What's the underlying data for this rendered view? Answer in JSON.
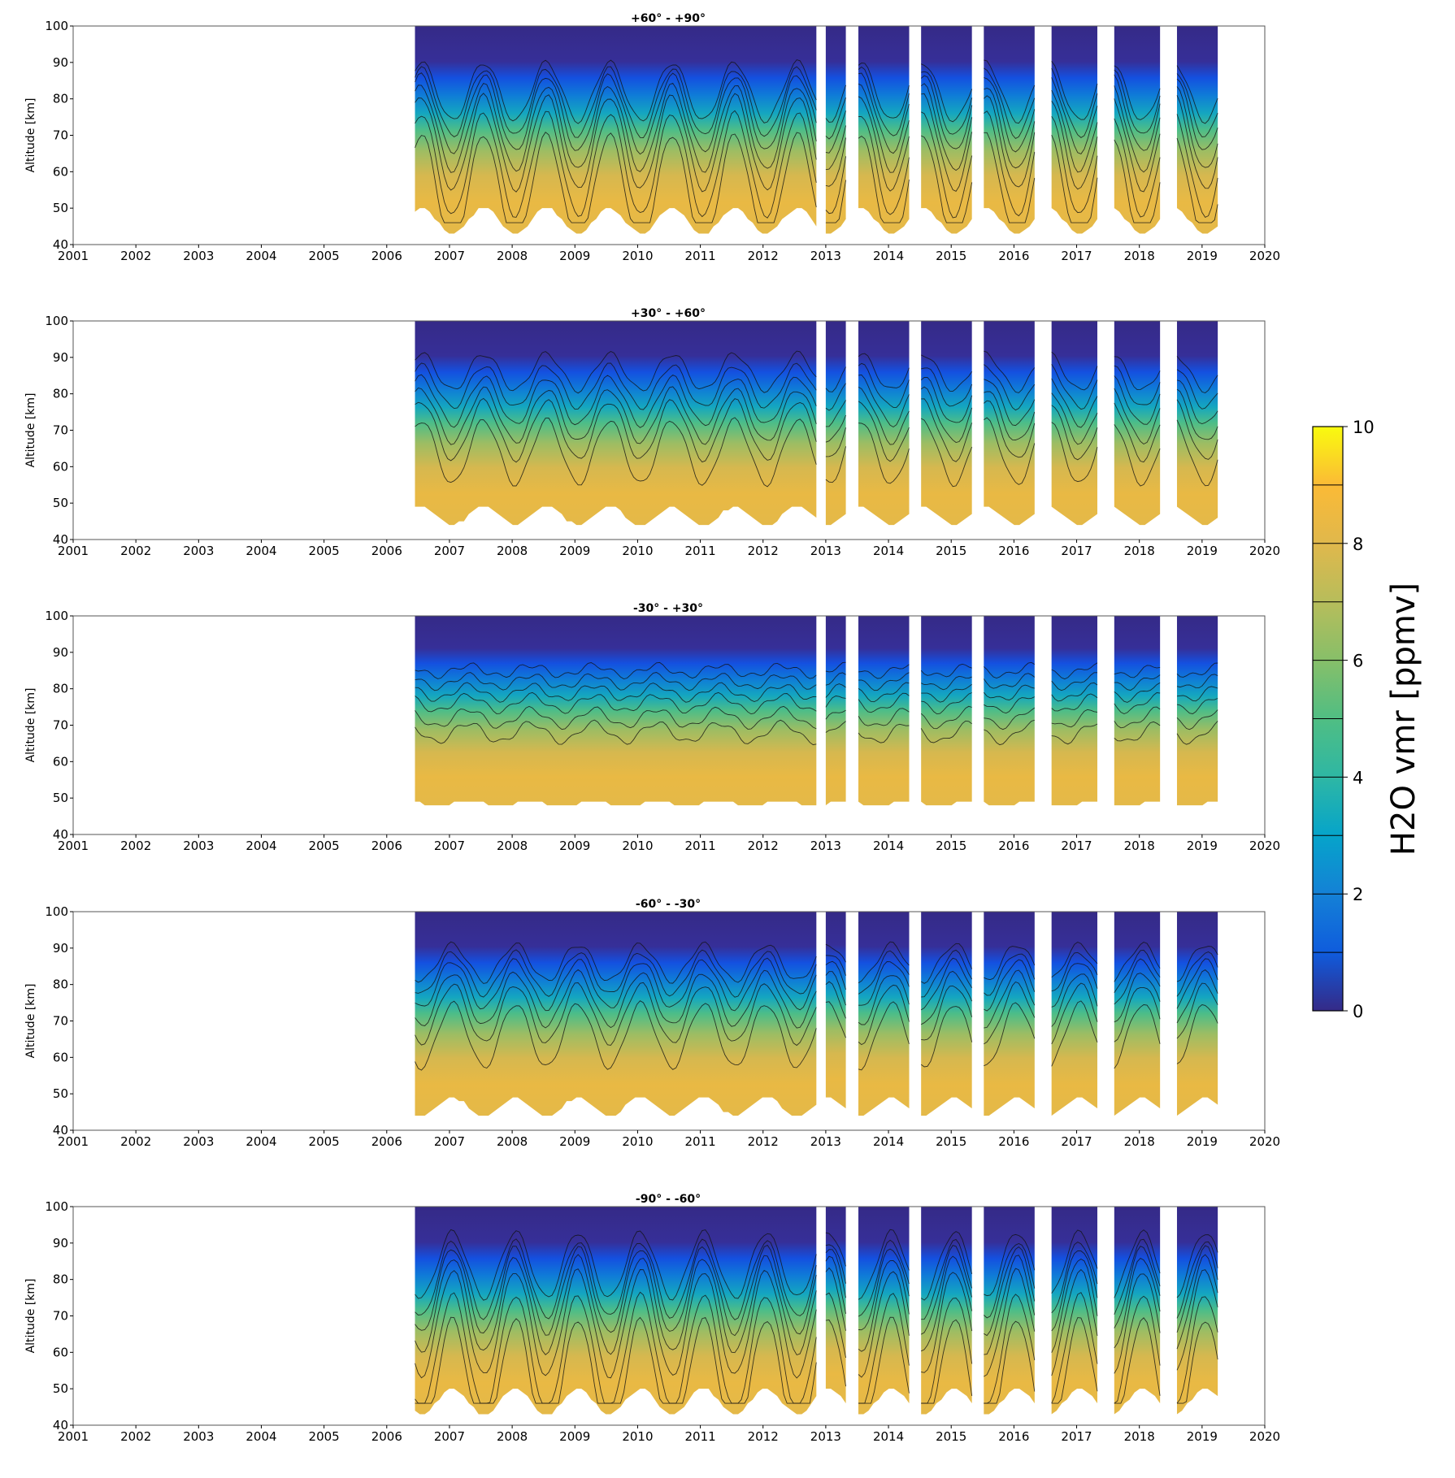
{
  "chart_data": {
    "type": "heatmap",
    "subtype": "filled-contour time-altitude sections",
    "xlabel": "",
    "ylabel": "Altitude [km]",
    "xlim": [
      2001,
      2020
    ],
    "ylim": [
      40,
      100
    ],
    "xticks": [
      "2001",
      "2002",
      "2003",
      "2004",
      "2005",
      "2006",
      "2007",
      "2008",
      "2009",
      "2010",
      "2011",
      "2012",
      "2013",
      "2014",
      "2015",
      "2016",
      "2017",
      "2018",
      "2019",
      "2020"
    ],
    "yticks": [
      "40",
      "50",
      "60",
      "70",
      "80",
      "90",
      "100"
    ],
    "data_segments_years": [
      [
        2006.45,
        2012.85
      ],
      [
        2013.0,
        2013.32
      ],
      [
        2013.52,
        2014.33
      ],
      [
        2014.52,
        2015.33
      ],
      [
        2015.52,
        2016.33
      ],
      [
        2016.6,
        2017.33
      ],
      [
        2017.6,
        2018.33
      ],
      [
        2018.6,
        2019.25
      ]
    ],
    "panels": [
      {
        "title": "+60° - +90°",
        "lower_edge_km": [
          43,
          50
        ],
        "contour_mean_altitude_km": [
          82,
          79,
          76,
          72,
          68,
          62,
          55
        ],
        "seasonal_amplitude_km": 8,
        "phase": 0.55
      },
      {
        "title": "+30° - +60°",
        "lower_edge_km": [
          44,
          49
        ],
        "contour_mean_altitude_km": [
          86,
          82,
          78,
          74,
          70,
          64
        ],
        "seasonal_amplitude_km": 5,
        "phase": 0.55
      },
      {
        "title": "-30° - +30°",
        "lower_edge_km": [
          48,
          49
        ],
        "contour_mean_altitude_km": [
          85,
          82,
          79,
          76,
          72,
          68
        ],
        "seasonal_amplitude_km": 1.5,
        "phase": 0.3
      },
      {
        "title": "-60° - -30°",
        "lower_edge_km": [
          44,
          49
        ],
        "contour_mean_altitude_km": [
          86,
          83,
          80,
          76,
          72,
          66
        ],
        "seasonal_amplitude_km": 5,
        "phase": 0.05
      },
      {
        "title": "-90° - -60°",
        "lower_edge_km": [
          43,
          50
        ],
        "contour_mean_altitude_km": [
          84,
          80,
          77,
          73,
          68,
          60,
          52
        ],
        "seasonal_amplitude_km": 9,
        "phase": 0.05
      }
    ],
    "colorbar": {
      "label": "H2O vmr [ppmv]",
      "range": [
        0,
        10
      ],
      "ticks": [
        "0",
        "2",
        "4",
        "6",
        "8",
        "10"
      ],
      "levels": [
        0,
        1,
        2,
        3,
        4,
        5,
        6,
        7,
        8,
        9,
        10
      ],
      "colors": [
        "#352a87",
        "#0f5cdd",
        "#1481d6",
        "#06a4ca",
        "#2eb7a4",
        "#50be83",
        "#87bf69",
        "#b7bd5b",
        "#e0b84c",
        "#fbba36",
        "#f9fb0e"
      ]
    }
  }
}
